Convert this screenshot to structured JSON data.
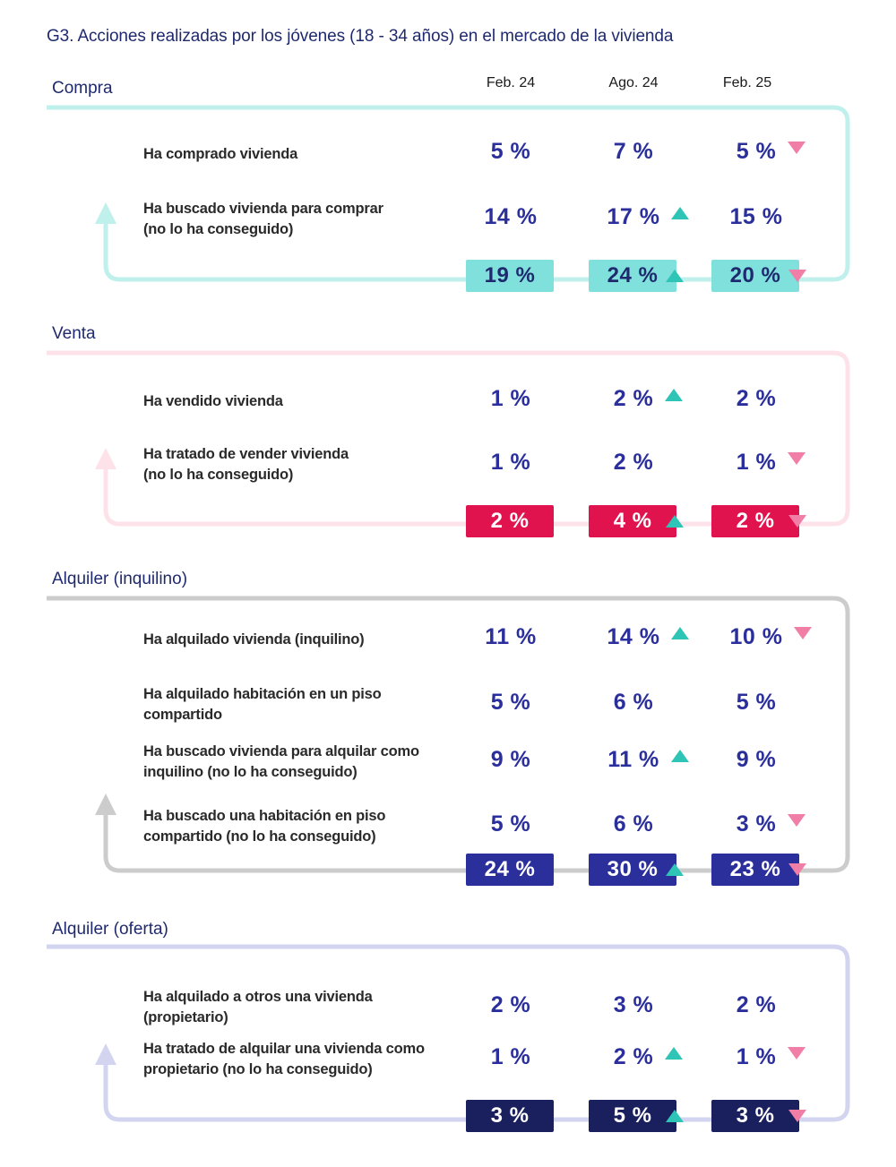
{
  "title": "G3. Acciones realizadas por los jóvenes (18 - 34 años) en el mercado de la vivienda",
  "columns": [
    "Feb. 24",
    "Ago. 24",
    "Feb. 25"
  ],
  "colors": {
    "trend_up": "#2ec4b6",
    "trend_down": "#f07ea6",
    "value_text": "#2b2f9c"
  },
  "chart_data": {
    "type": "table",
    "title": "G3. Acciones realizadas por los jóvenes (18 - 34 años) en el mercado de la vivienda",
    "periods": [
      "Feb. 24",
      "Ago. 24",
      "Feb. 25"
    ],
    "sections": [
      {
        "name": "Compra",
        "line_color": "#bff0ec",
        "total_bg": "#7fe0dc",
        "total_fg": "#1f2a6e",
        "rows": [
          {
            "label": "Ha comprado vivienda",
            "values": [
              "5 %",
              "7 %",
              "5 %"
            ],
            "trends": [
              "",
              "",
              "down"
            ]
          },
          {
            "label": "Ha buscado vivienda para comprar\n(no lo ha conseguido)",
            "values": [
              "14 %",
              "17 %",
              "15 %"
            ],
            "trends": [
              "",
              "up",
              ""
            ]
          }
        ],
        "totals": [
          "19 %",
          "24 %",
          "20 %"
        ],
        "total_trends": [
          "",
          "up",
          "down"
        ]
      },
      {
        "name": "Venta",
        "line_color": "#fde2ea",
        "total_bg": "#e0134f",
        "total_fg": "#ffffff",
        "rows": [
          {
            "label": "Ha vendido vivienda",
            "values": [
              "1 %",
              "2 %",
              "2 %"
            ],
            "trends": [
              "",
              "up",
              ""
            ]
          },
          {
            "label": "Ha tratado de vender vivienda\n(no lo ha conseguido)",
            "values": [
              "1 %",
              "2 %",
              "1 %"
            ],
            "trends": [
              "",
              "",
              "down"
            ]
          }
        ],
        "totals": [
          "2 %",
          "4 %",
          "2 %"
        ],
        "total_trends": [
          "",
          "up",
          "down"
        ]
      },
      {
        "name": "Alquiler (inquilino)",
        "line_color": "#cccccc",
        "total_bg": "#2b2f9c",
        "total_fg": "#ffffff",
        "rows": [
          {
            "label": "Ha alquilado vivienda (inquilino)",
            "values": [
              "11 %",
              "14 %",
              "10 %"
            ],
            "trends": [
              "",
              "up",
              "down"
            ]
          },
          {
            "label": "Ha alquilado habitación en un piso\ncompartido",
            "values": [
              "5 %",
              "6 %",
              "5 %"
            ],
            "trends": [
              "",
              "",
              ""
            ]
          },
          {
            "label": "Ha buscado vivienda para alquilar como\ninquilino (no lo ha conseguido)",
            "values": [
              "9 %",
              "11 %",
              "9 %"
            ],
            "trends": [
              "",
              "up",
              ""
            ]
          },
          {
            "label": "Ha buscado una habitación en piso\ncompartido (no lo ha conseguido)",
            "values": [
              "5 %",
              "6 %",
              "3 %"
            ],
            "trends": [
              "",
              "",
              "down"
            ]
          }
        ],
        "totals": [
          "24 %",
          "30 %",
          "23 %"
        ],
        "total_trends": [
          "",
          "up",
          "down"
        ]
      },
      {
        "name": "Alquiler (oferta)",
        "line_color": "#d3d5f0",
        "total_bg": "#1a1f5e",
        "total_fg": "#ffffff",
        "rows": [
          {
            "label": "Ha alquilado a otros una vivienda\n(propietario)",
            "values": [
              "2 %",
              "3 %",
              "2 %"
            ],
            "trends": [
              "",
              "",
              ""
            ]
          },
          {
            "label": "Ha tratado de alquilar una vivienda como\npropietario (no lo ha conseguido)",
            "values": [
              "1 %",
              "2 %",
              "1 %"
            ],
            "trends": [
              "",
              "up",
              "down"
            ]
          }
        ],
        "totals": [
          "3 %",
          "5 %",
          "3 %"
        ],
        "total_trends": [
          "",
          "up",
          "down"
        ]
      }
    ]
  }
}
